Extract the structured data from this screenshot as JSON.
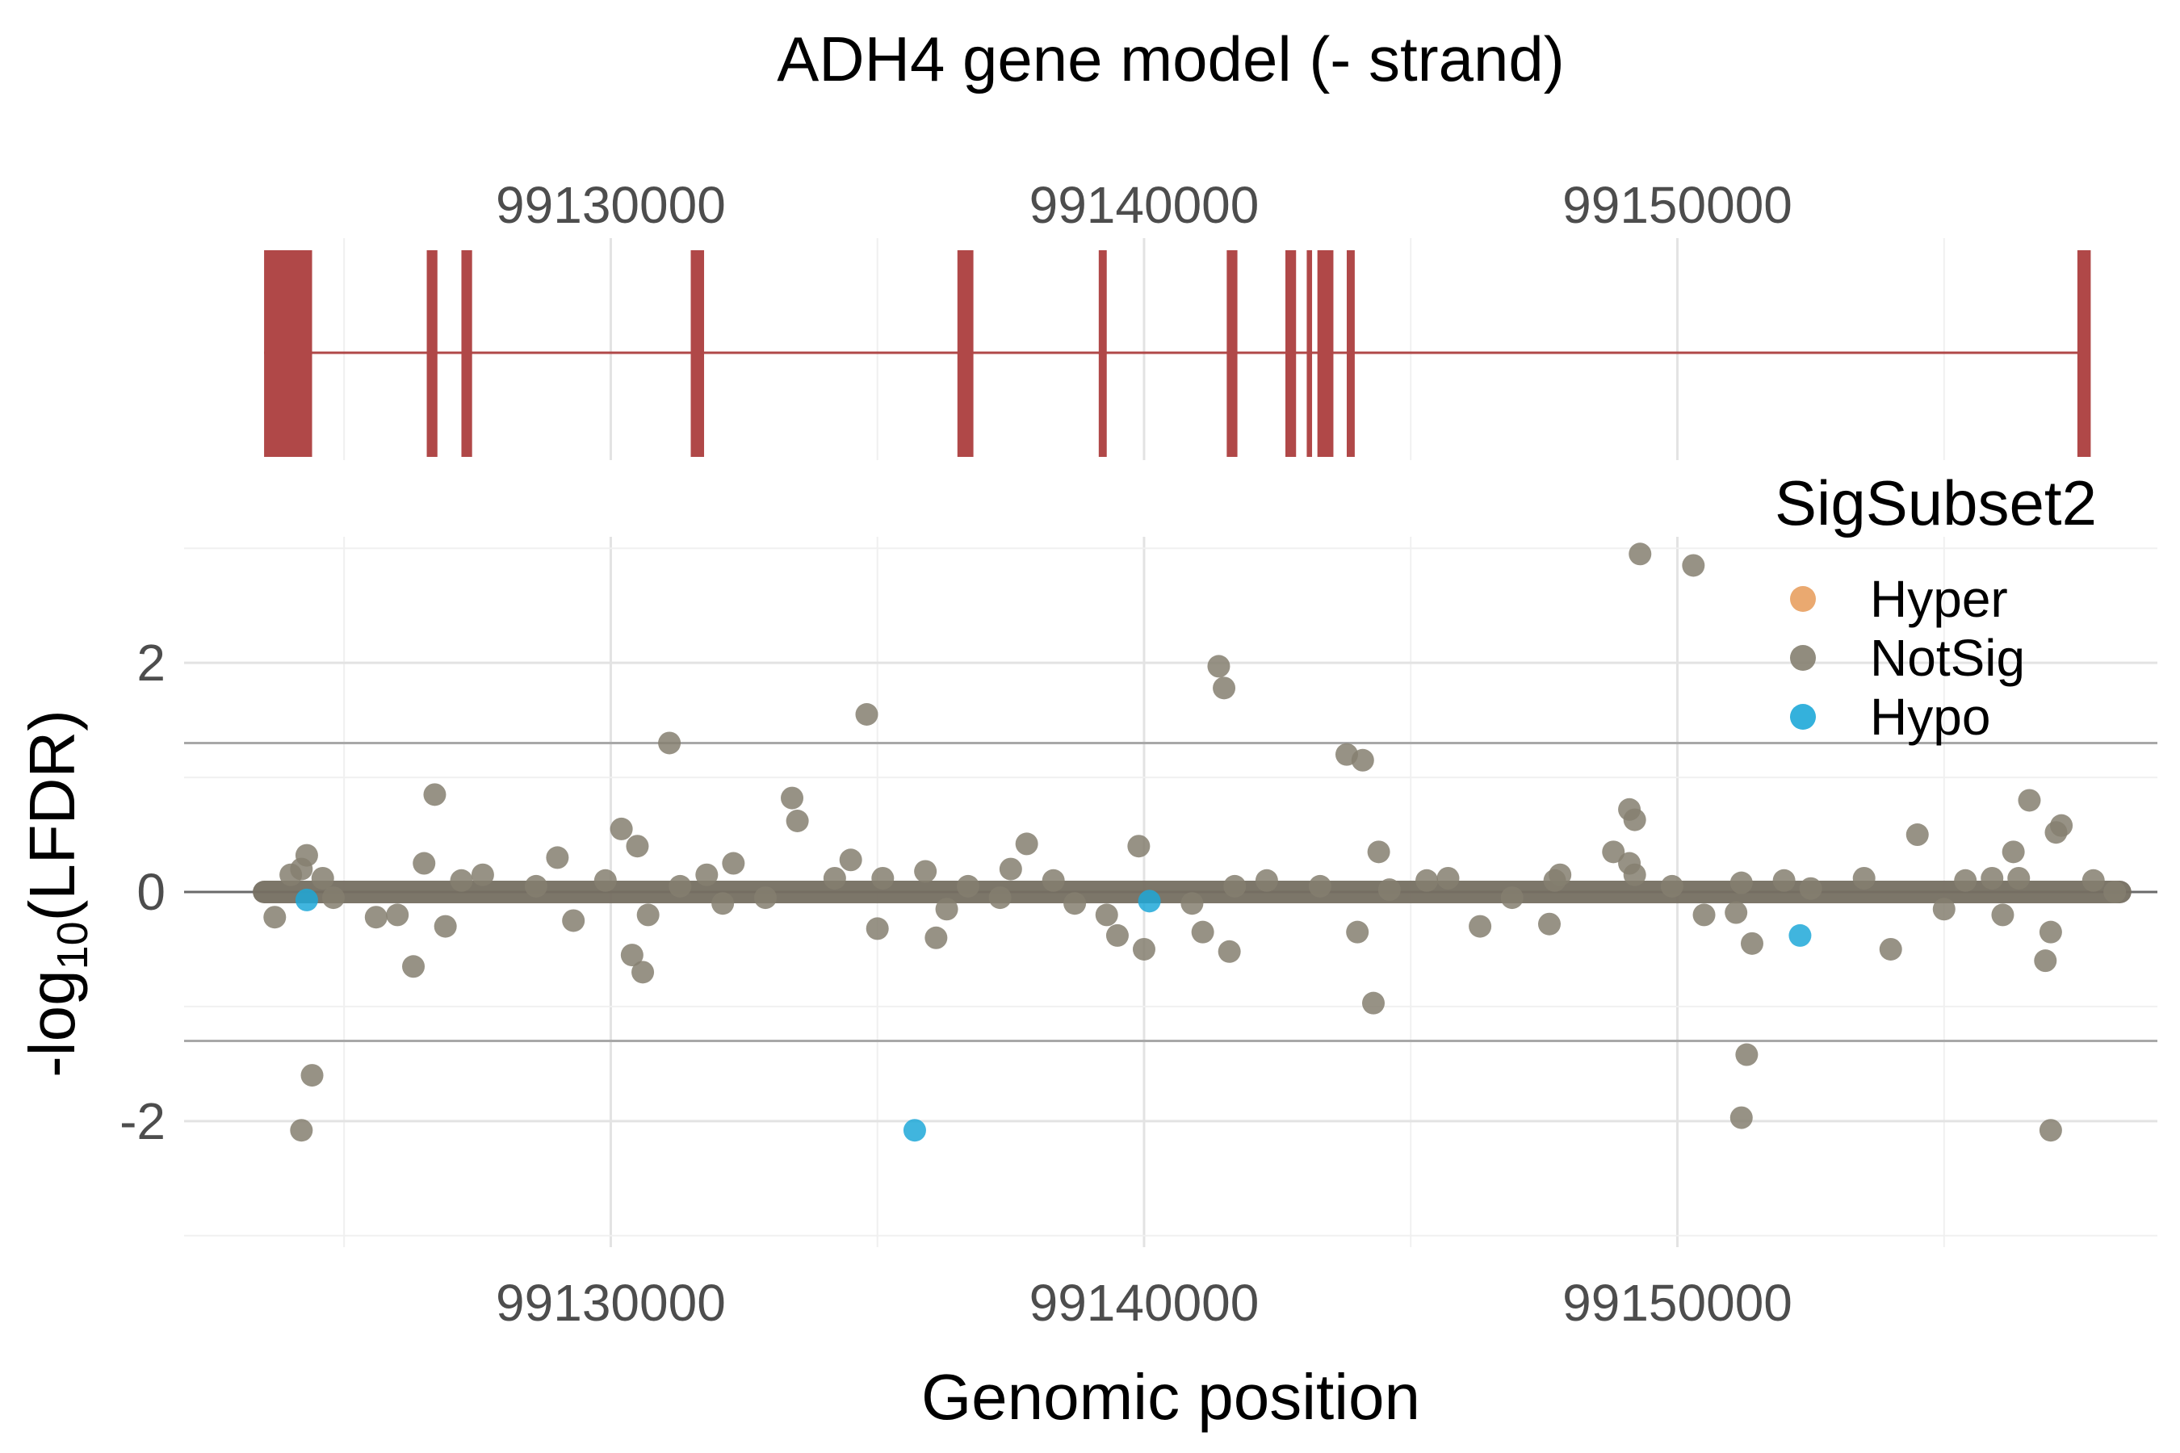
{
  "chart_data": {
    "type": "scatter",
    "title": "ADH4 gene model (- strand)",
    "xlabel": "Genomic position",
    "ylabel_main": "-log",
    "ylabel_sub": "10",
    "ylabel_tail": "(LFDR)",
    "xlim": [
      99122000,
      99159000
    ],
    "ylim": [
      -3.1,
      3.1
    ],
    "x_ticks": [
      99130000,
      99140000,
      99150000
    ],
    "x_tick_labels": [
      "99130000",
      "99140000",
      "99150000"
    ],
    "y_ticks": [
      -2,
      0,
      2
    ],
    "y_tick_labels": [
      "-2",
      "0",
      "2"
    ],
    "hlines": [
      1.3,
      -1.3,
      0
    ],
    "grid": true,
    "gene_model": {
      "strand": "-",
      "color": "#b04848",
      "intron_start": 99123500,
      "intron_end": 99157600,
      "exons": [
        [
          99123500,
          99124400
        ],
        [
          99126550,
          99126750
        ],
        [
          99127200,
          99127400
        ],
        [
          99131500,
          99131750
        ],
        [
          99136500,
          99136800
        ],
        [
          99139150,
          99139300
        ],
        [
          99141550,
          99141750
        ],
        [
          99142650,
          99142850
        ],
        [
          99143050,
          99143150
        ],
        [
          99143250,
          99143550
        ],
        [
          99143800,
          99143950
        ],
        [
          99157500,
          99157750
        ]
      ]
    },
    "legend": {
      "title": "SigSubset2",
      "position": "top-right",
      "entries": [
        {
          "label": "Hyper",
          "color": "#e8a060"
        },
        {
          "label": "NotSig",
          "color": "#857f70"
        },
        {
          "label": "Hypo",
          "color": "#1ea8d8"
        }
      ]
    },
    "series": [
      {
        "name": "NotSig",
        "color": "#857f70",
        "points": [
          [
            99123700,
            -0.22
          ],
          [
            99124300,
            0.32
          ],
          [
            99124200,
            0.2
          ],
          [
            99124000,
            0.15
          ],
          [
            99124600,
            0.12
          ],
          [
            99124800,
            -0.05
          ],
          [
            99124400,
            -1.6
          ],
          [
            99124200,
            -2.08
          ],
          [
            99125600,
            -0.22
          ],
          [
            99126000,
            -0.2
          ],
          [
            99126300,
            -0.65
          ],
          [
            99126700,
            0.85
          ],
          [
            99126900,
            -0.3
          ],
          [
            99126500,
            0.25
          ],
          [
            99127200,
            0.1
          ],
          [
            99127600,
            0.15
          ],
          [
            99128600,
            0.05
          ],
          [
            99129000,
            0.3
          ],
          [
            99129300,
            -0.25
          ],
          [
            99129900,
            0.1
          ],
          [
            99130200,
            0.55
          ],
          [
            99130400,
            -0.55
          ],
          [
            99130600,
            -0.7
          ],
          [
            99130500,
            0.4
          ],
          [
            99130700,
            -0.2
          ],
          [
            99131100,
            1.3
          ],
          [
            99131300,
            0.05
          ],
          [
            99131800,
            0.15
          ],
          [
            99132100,
            -0.1
          ],
          [
            99132300,
            0.25
          ],
          [
            99132900,
            -0.05
          ],
          [
            99133400,
            0.82
          ],
          [
            99133500,
            0.62
          ],
          [
            99134200,
            0.12
          ],
          [
            99134500,
            0.28
          ],
          [
            99134800,
            1.55
          ],
          [
            99135000,
            -0.32
          ],
          [
            99135100,
            0.12
          ],
          [
            99135900,
            0.18
          ],
          [
            99136100,
            -0.4
          ],
          [
            99136300,
            -0.15
          ],
          [
            99136700,
            0.05
          ],
          [
            99137300,
            -0.05
          ],
          [
            99137500,
            0.2
          ],
          [
            99137800,
            0.42
          ],
          [
            99138300,
            0.1
          ],
          [
            99138700,
            -0.1
          ],
          [
            99139300,
            -0.2
          ],
          [
            99139500,
            -0.38
          ],
          [
            99139900,
            0.4
          ],
          [
            99140000,
            -0.5
          ],
          [
            99140900,
            -0.1
          ],
          [
            99141100,
            -0.35
          ],
          [
            99141400,
            1.97
          ],
          [
            99141500,
            1.78
          ],
          [
            99141600,
            -0.52
          ],
          [
            99141700,
            0.05
          ],
          [
            99142300,
            0.1
          ],
          [
            99143300,
            0.05
          ],
          [
            99143800,
            1.2
          ],
          [
            99144100,
            1.15
          ],
          [
            99144000,
            -0.35
          ],
          [
            99144300,
            -0.97
          ],
          [
            99144400,
            0.35
          ],
          [
            99144600,
            0.02
          ],
          [
            99145300,
            0.1
          ],
          [
            99145700,
            0.12
          ],
          [
            99146300,
            -0.3
          ],
          [
            99146900,
            -0.05
          ],
          [
            99147600,
            -0.28
          ],
          [
            99147700,
            0.1
          ],
          [
            99147800,
            0.15
          ],
          [
            99148800,
            0.35
          ],
          [
            99149100,
            0.72
          ],
          [
            99149200,
            0.63
          ],
          [
            99149100,
            0.25
          ],
          [
            99149200,
            0.15
          ],
          [
            99149300,
            2.95
          ],
          [
            99149900,
            0.05
          ],
          [
            99150300,
            2.85
          ],
          [
            99150500,
            -0.2
          ],
          [
            99151100,
            -0.18
          ],
          [
            99151200,
            0.08
          ],
          [
            99151300,
            -1.42
          ],
          [
            99151200,
            -1.97
          ],
          [
            99151400,
            -0.45
          ],
          [
            99152000,
            0.1
          ],
          [
            99152500,
            0.03
          ],
          [
            99153500,
            0.12
          ],
          [
            99154000,
            -0.5
          ],
          [
            99154500,
            0.5
          ],
          [
            99155000,
            -0.15
          ],
          [
            99155400,
            0.1
          ],
          [
            99155900,
            0.12
          ],
          [
            99156100,
            -0.2
          ],
          [
            99156300,
            0.35
          ],
          [
            99156400,
            0.12
          ],
          [
            99156600,
            0.8
          ],
          [
            99156900,
            -0.6
          ],
          [
            99157000,
            -0.35
          ],
          [
            99157100,
            0.52
          ],
          [
            99157200,
            0.58
          ],
          [
            99157000,
            -2.08
          ],
          [
            99157800,
            0.1
          ],
          [
            99158200,
            0.0
          ]
        ]
      },
      {
        "name": "Hypo",
        "color": "#1ea8d8",
        "points": [
          [
            99124300,
            -0.07
          ],
          [
            99135700,
            -2.08
          ],
          [
            99140100,
            -0.08
          ],
          [
            99152300,
            -0.38
          ]
        ]
      },
      {
        "name": "Hyper",
        "color": "#e8a060",
        "points": []
      }
    ]
  }
}
